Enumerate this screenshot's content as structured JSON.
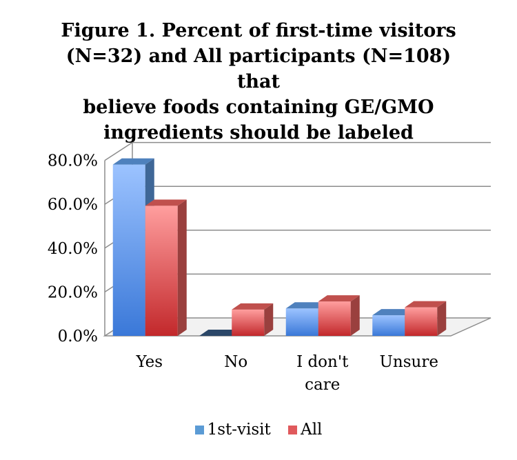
{
  "chart_data": {
    "type": "bar",
    "title_lines": [
      "Figure 1. Percent of first-time visitors",
      "(N=32) and All participants (N=108) that",
      "believe foods containing GE/GMO",
      "ingredients should be labeled"
    ],
    "categories": [
      [
        "Yes"
      ],
      [
        "No"
      ],
      [
        "I don't",
        "care"
      ],
      [
        "Unsure"
      ]
    ],
    "series": [
      {
        "name": "1st-visit",
        "values": [
          78.1,
          0.0,
          12.5,
          9.4
        ],
        "color": "#4f81bd"
      },
      {
        "name": "All",
        "values": [
          59.3,
          12.0,
          15.7,
          13.0
        ],
        "color": "#c0504d"
      }
    ],
    "yticks": [
      "0.0%",
      "20.0%",
      "40.0%",
      "60.0%",
      "80.0%"
    ],
    "ylim": [
      0,
      80
    ],
    "grid": true,
    "legend_position": "bottom"
  }
}
